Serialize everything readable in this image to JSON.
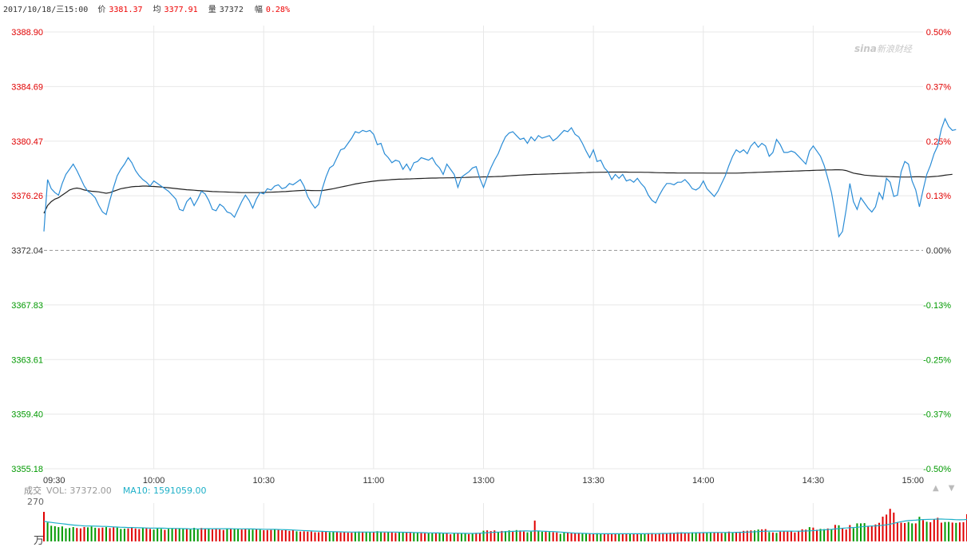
{
  "header": {
    "datetime": "2017/10/18/三15:00",
    "price_label": "价",
    "price": "3381.37",
    "avg_label": "均",
    "avg": "3377.91",
    "vol_label": "量",
    "vol": "37372",
    "change_label": "幅",
    "change": "0.28%"
  },
  "logo": {
    "brand": "sina",
    "text": "新浪财经"
  },
  "volume_panel": {
    "title": "成交",
    "vol_text": "VOL: 37372.00",
    "ma_text": "MA10: 1591059.00",
    "max_tick": "270",
    "unit": "万",
    "controls": [
      "▲",
      "▼"
    ]
  },
  "colors": {
    "up": "#e00000",
    "down": "#009900",
    "price_line": "#2a8cd6",
    "avg_line": "#222222",
    "ma_line": "#1eb0c8",
    "grid": "#e8e8e8"
  },
  "chart_data": [
    {
      "type": "line",
      "title": "",
      "x_ticks": [
        "09:30",
        "10:00",
        "10:30",
        "11:00",
        "13:00",
        "13:30",
        "14:00",
        "14:30",
        "15:00"
      ],
      "y_ticks_left": [
        "3388.90",
        "3384.69",
        "3380.47",
        "3376.26",
        "3372.04",
        "3367.83",
        "3363.61",
        "3359.40",
        "3355.18"
      ],
      "y_ticks_right": [
        "0.50%",
        "0.37%",
        "0.25%",
        "0.13%",
        "0.00%",
        "-0.13%",
        "-0.25%",
        "-0.37%",
        "-0.50%"
      ],
      "ylim": [
        3355.18,
        3388.9
      ],
      "prev_close": 3372.04,
      "series": [
        {
          "role": "price",
          "values": [
            3373.5,
            3377.5,
            3376.8,
            3376.5,
            3376.3,
            3377.2,
            3377.9,
            3378.3,
            3378.7,
            3378.2,
            3377.6,
            3377.0,
            3376.6,
            3376.4,
            3376.1,
            3375.5,
            3375.0,
            3374.8,
            3375.9,
            3376.9,
            3377.8,
            3378.3,
            3378.7,
            3379.2,
            3378.8,
            3378.2,
            3377.8,
            3377.5,
            3377.3,
            3377.0,
            3377.4,
            3377.2,
            3377.0,
            3376.8,
            3376.6,
            3376.3,
            3376.0,
            3375.2,
            3375.1,
            3375.8,
            3376.1,
            3375.5,
            3376.0,
            3376.6,
            3376.4,
            3375.9,
            3375.2,
            3375.1,
            3375.6,
            3375.4,
            3375.0,
            3374.9,
            3374.6,
            3375.2,
            3375.8,
            3376.3,
            3375.9,
            3375.3,
            3376.0,
            3376.5,
            3376.4,
            3376.8,
            3376.7,
            3377.0,
            3377.1,
            3376.8,
            3376.9,
            3377.2,
            3377.1,
            3377.3,
            3377.5,
            3377.0,
            3376.2,
            3375.7,
            3375.3,
            3375.6,
            3376.8,
            3377.7,
            3378.4,
            3378.6,
            3379.2,
            3379.8,
            3379.9,
            3380.3,
            3380.7,
            3381.2,
            3381.1,
            3381.3,
            3381.2,
            3381.3,
            3381.0,
            3380.2,
            3380.3,
            3379.5,
            3379.2,
            3378.8,
            3379.0,
            3378.9,
            3378.3,
            3378.7,
            3378.2,
            3378.8,
            3378.9,
            3379.2,
            3379.1,
            3379.0,
            3379.2,
            3378.7,
            3378.4,
            3377.9,
            3378.7,
            3378.3,
            3377.9,
            3376.9,
            3377.7,
            3377.9,
            3378.1,
            3378.4,
            3378.5,
            3377.6,
            3376.9,
            3377.7,
            3378.4,
            3379.0,
            3379.5,
            3380.2,
            3380.8,
            3381.1,
            3381.2,
            3380.9,
            3380.6,
            3380.7,
            3380.3,
            3380.8,
            3380.5,
            3380.9,
            3380.7,
            3380.8,
            3380.9,
            3380.5,
            3380.7,
            3381.0,
            3381.3,
            3381.2,
            3381.5,
            3381.0,
            3380.8,
            3380.3,
            3379.7,
            3379.2,
            3379.8,
            3378.9,
            3379.0,
            3378.4,
            3378.1,
            3377.5,
            3377.9,
            3377.6,
            3377.9,
            3377.4,
            3377.5,
            3377.3,
            3377.6,
            3377.2,
            3376.9,
            3376.3,
            3375.9,
            3375.7,
            3376.3,
            3376.8,
            3377.2,
            3377.2,
            3377.1,
            3377.3,
            3377.3,
            3377.5,
            3377.2,
            3376.8,
            3376.7,
            3376.9,
            3377.4,
            3376.8,
            3376.5,
            3376.2,
            3376.6,
            3377.2,
            3377.8,
            3378.6,
            3379.3,
            3379.8,
            3379.6,
            3379.8,
            3379.5,
            3380.1,
            3380.4,
            3380.0,
            3380.3,
            3380.1,
            3379.3,
            3379.6,
            3380.6,
            3380.2,
            3379.6,
            3379.6,
            3379.7,
            3379.6,
            3379.3,
            3379.0,
            3378.7,
            3379.7,
            3380.1,
            3379.7,
            3379.3,
            3378.6,
            3377.6,
            3376.5,
            3374.9,
            3373.1,
            3373.5,
            3375.2,
            3377.2,
            3375.8,
            3375.2,
            3376.1,
            3375.7,
            3375.3,
            3375.0,
            3375.4,
            3376.5,
            3376.0,
            3377.6,
            3377.3,
            3376.2,
            3376.3,
            3378.1,
            3378.9,
            3378.7,
            3377.4,
            3376.7,
            3375.4,
            3376.7,
            3377.9,
            3378.6,
            3379.5,
            3380.1,
            3381.4,
            3382.2,
            3381.6,
            3381.3,
            3381.37
          ]
        },
        {
          "role": "average",
          "values": [
            3374.9,
            3375.5,
            3375.8,
            3376.0,
            3376.1,
            3376.3,
            3376.5,
            3376.7,
            3376.8,
            3376.85,
            3376.8,
            3376.7,
            3376.65,
            3376.6,
            3376.58,
            3376.55,
            3376.5,
            3376.45,
            3376.5,
            3376.6,
            3376.7,
            3376.8,
            3376.85,
            3376.9,
            3376.95,
            3376.97,
            3376.98,
            3377.0,
            3377.0,
            3376.98,
            3376.97,
            3376.95,
            3376.93,
            3376.9,
            3376.87,
            3376.84,
            3376.81,
            3376.78,
            3376.75,
            3376.72,
            3376.7,
            3376.68,
            3376.66,
            3376.64,
            3376.62,
            3376.6,
            3376.58,
            3376.57,
            3376.56,
            3376.55,
            3376.54,
            3376.53,
            3376.52,
            3376.51,
            3376.5,
            3376.5,
            3376.5,
            3376.5,
            3376.5,
            3376.5,
            3376.51,
            3376.52,
            3376.53,
            3376.54,
            3376.55,
            3376.57,
            3376.58,
            3376.6,
            3376.62,
            3376.64,
            3376.66,
            3376.67,
            3376.67,
            3376.66,
            3376.65,
            3376.65,
            3376.66,
            3376.7,
            3376.75,
            3376.8,
            3376.86,
            3376.92,
            3376.98,
            3377.04,
            3377.1,
            3377.16,
            3377.21,
            3377.26,
            3377.3,
            3377.34,
            3377.38,
            3377.41,
            3377.44,
            3377.46,
            3377.48,
            3377.5,
            3377.52,
            3377.53,
            3377.54,
            3377.55,
            3377.56,
            3377.57,
            3377.58,
            3377.59,
            3377.6,
            3377.61,
            3377.62,
            3377.62,
            3377.63,
            3377.63,
            3377.64,
            3377.64,
            3377.65,
            3377.65,
            3377.66,
            3377.67,
            3377.68,
            3377.69,
            3377.7,
            3377.7,
            3377.71,
            3377.71,
            3377.72,
            3377.73,
            3377.74,
            3377.75,
            3377.77,
            3377.79,
            3377.81,
            3377.83,
            3377.85,
            3377.86,
            3377.87,
            3377.89,
            3377.9,
            3377.91,
            3377.92,
            3377.93,
            3377.94,
            3377.95,
            3377.96,
            3377.97,
            3377.98,
            3377.99,
            3378.0,
            3378.01,
            3378.02,
            3378.03,
            3378.04,
            3378.05,
            3378.06,
            3378.06,
            3378.07,
            3378.07,
            3378.08,
            3378.08,
            3378.08,
            3378.08,
            3378.08,
            3378.08,
            3378.07,
            3378.07,
            3378.07,
            3378.07,
            3378.06,
            3378.06,
            3378.05,
            3378.04,
            3378.03,
            3378.03,
            3378.02,
            3378.02,
            3378.02,
            3378.01,
            3378.01,
            3378.01,
            3378.01,
            3378.01,
            3378.01,
            3378.01,
            3378.01,
            3378.0,
            3378.0,
            3378.0,
            3378.0,
            3378.0,
            3378.0,
            3378.0,
            3378.0,
            3378.0,
            3378.01,
            3378.02,
            3378.03,
            3378.04,
            3378.05,
            3378.06,
            3378.07,
            3378.08,
            3378.09,
            3378.1,
            3378.11,
            3378.12,
            3378.13,
            3378.14,
            3378.15,
            3378.16,
            3378.17,
            3378.18,
            3378.19,
            3378.2,
            3378.21,
            3378.22,
            3378.23,
            3378.24,
            3378.25,
            3378.25,
            3378.26,
            3378.26,
            3378.25,
            3378.2,
            3378.1,
            3378.0,
            3377.95,
            3377.9,
            3377.85,
            3377.82,
            3377.8,
            3377.78,
            3377.76,
            3377.75,
            3377.74,
            3377.73,
            3377.72,
            3377.71,
            3377.7,
            3377.7,
            3377.7,
            3377.71,
            3377.72,
            3377.72,
            3377.71,
            3377.7,
            3377.72,
            3377.74,
            3377.76,
            3377.8,
            3377.84,
            3377.88,
            3377.91
          ]
        }
      ]
    },
    {
      "type": "bar",
      "title": "成交",
      "ylim": [
        0,
        270
      ],
      "ylabel": "万",
      "up_flags": "RGGGGGGGGRRRGGGRRGRRGGGRRRRGRRGGGRGGRGGRGGGRRGRRRRGRGGRRGGRGRRRGRRRRRGRRRRRRRRGGRRRRRGGRGGRGGRGRRGGRRGGRRGGRGGRRGRGGRGRRGRRRGRGGRGRRGGRGGRGRRGGRRRRGGRRGGRRRRGRRGRRGGRRRRRRRRRRRRGGRRGGRRRGRGRRRRRGGRRGRGRRRRRRRRGRRGGRGRGRRRGGGGRRRRRRRRRRRGGRGRGRRRRGGRGRRRRGRRRRRGRRGRRRG",
      "volumes": [
        238,
        152,
        126,
        122,
        115,
        121,
        105,
        108,
        116,
        108,
        105,
        116,
        113,
        120,
        110,
        107,
        111,
        115,
        107,
        114,
        111,
        100,
        103,
        104,
        114,
        104,
        99,
        111,
        108,
        100,
        95,
        105,
        101,
        93,
        100,
        105,
        104,
        103,
        100,
        100,
        98,
        109,
        98,
        108,
        106,
        102,
        97,
        100,
        97,
        92,
        103,
        103,
        104,
        100,
        96,
        102,
        95,
        95,
        101,
        94,
        90,
        91,
        92,
        97,
        94,
        90,
        95,
        85,
        91,
        81,
        79,
        81,
        79,
        79,
        73,
        74,
        77,
        82,
        74,
        76,
        77,
        72,
        77,
        71,
        70,
        78,
        80,
        78,
        78,
        76,
        75,
        82,
        78,
        72,
        74,
        73,
        69,
        75,
        71,
        71,
        70,
        68,
        69,
        67,
        66,
        65,
        66,
        71,
        66,
        63,
        67,
        57,
        68,
        67,
        62,
        64,
        59,
        67,
        69,
        64,
        86,
        89,
        83,
        89,
        77,
        84,
        83,
        89,
        79,
        91,
        88,
        79,
        73,
        79,
        168,
        84,
        78,
        79,
        75,
        74,
        72,
        61,
        70,
        68,
        67,
        67,
        68,
        65,
        67,
        61,
        58,
        66,
        61,
        61,
        63,
        63,
        64,
        59,
        58,
        62,
        59,
        60,
        63,
        60,
        62,
        65,
        67,
        59,
        67,
        68,
        61,
        70,
        66,
        73,
        73,
        71,
        66,
        73,
        70,
        69,
        72,
        71,
        72,
        73,
        73,
        67,
        72,
        79,
        72,
        73,
        78,
        85,
        86,
        89,
        89,
        96,
        97,
        99,
        75,
        72,
        69,
        79,
        84,
        80,
        82,
        72,
        85,
        98,
        95,
        115,
        111,
        94,
        101,
        99,
        104,
        98,
        133,
        130,
        109,
        96,
        132,
        107,
        145,
        145,
        147,
        125,
        123,
        136,
        150,
        199,
        216,
        262,
        232,
        152,
        151,
        148,
        156,
        145,
        145,
        198,
        171,
        158,
        154,
        180,
        190,
        151,
        156,
        157,
        152,
        149,
        153,
        155,
        219,
        221,
        220,
        223,
        220,
        203,
        227,
        211,
        200
      ],
      "ma10": [
        162,
        157,
        153,
        149,
        146,
        143,
        139,
        135,
        132,
        129,
        127,
        125,
        124,
        124,
        123,
        122,
        121,
        121,
        119,
        117,
        116,
        114,
        113,
        112,
        112,
        111,
        110,
        109,
        108,
        107,
        107,
        107,
        107,
        106,
        105,
        105,
        104,
        104,
        103,
        102,
        101,
        101,
        101,
        101,
        102,
        102,
        102,
        102,
        102,
        102,
        102,
        102,
        101,
        101,
        101,
        101,
        100,
        100,
        99,
        99,
        98,
        98,
        97,
        97,
        96,
        95,
        94,
        93,
        92,
        90,
        89,
        87,
        86,
        84,
        83,
        82,
        81,
        80,
        79,
        78,
        77,
        77,
        76,
        76,
        75,
        75,
        75,
        75,
        75,
        75,
        75,
        76,
        76,
        76,
        75,
        75,
        75,
        74,
        74,
        73,
        73,
        72,
        71,
        71,
        70,
        69,
        69,
        68,
        68,
        67,
        67,
        66,
        66,
        66,
        65,
        65,
        64,
        64,
        65,
        66,
        68,
        70,
        72,
        74,
        75,
        76,
        78,
        80,
        81,
        82,
        83,
        84,
        84,
        83,
        84,
        84,
        82,
        81,
        80,
        79,
        77,
        75,
        73,
        71,
        69,
        67,
        66,
        65,
        64,
        63,
        62,
        62,
        62,
        62,
        62,
        62,
        62,
        62,
        62,
        62,
        62,
        62,
        62,
        62,
        62,
        63,
        63,
        63,
        63,
        64,
        64,
        65,
        66,
        67,
        68,
        68,
        69,
        69,
        70,
        70,
        71,
        71,
        72,
        72,
        72,
        72,
        72,
        72,
        72,
        73,
        73,
        74,
        75,
        76,
        77,
        79,
        81,
        82,
        83,
        83,
        83,
        83,
        83,
        83,
        83,
        82,
        82,
        83,
        84,
        85,
        87,
        89,
        91,
        93,
        95,
        97,
        100,
        103,
        106,
        108,
        110,
        112,
        114,
        117,
        120,
        122,
        124,
        125,
        127,
        130,
        134,
        139,
        146,
        153,
        159,
        164,
        168,
        170,
        171,
        174,
        176,
        177,
        178,
        179,
        180,
        180,
        179,
        178,
        177,
        175,
        174,
        175,
        177,
        179,
        181,
        183,
        185,
        187,
        190,
        193,
        196
      ]
    }
  ]
}
